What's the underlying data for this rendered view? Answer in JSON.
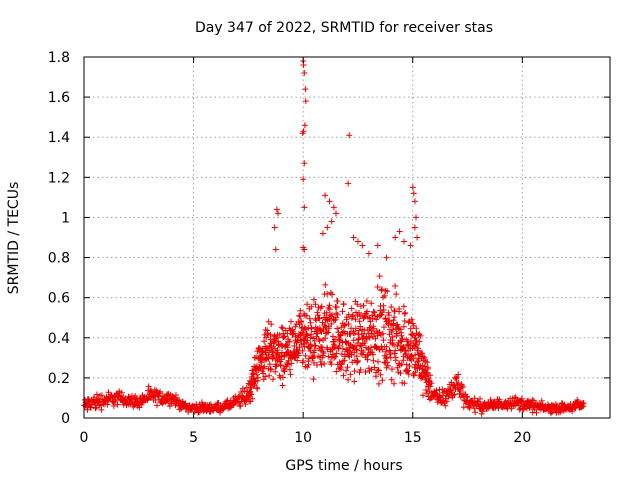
{
  "chart_data": {
    "type": "scatter",
    "title": "Day 347 of 2022, SRMTID for receiver stas",
    "xlabel": "GPS time / hours",
    "ylabel": "SRMTID / TECUs",
    "xlim": [
      0,
      24
    ],
    "ylim": [
      0,
      1.8
    ],
    "xticks": [
      0,
      5,
      10,
      15,
      20
    ],
    "yticks": [
      0,
      0.2,
      0.4,
      0.6,
      0.8,
      1,
      1.2,
      1.4,
      1.6,
      1.8
    ],
    "xtick_labels": [
      "0",
      "5",
      "10",
      "15",
      "20"
    ],
    "ytick_labels": [
      "0",
      "0.2",
      "0.4",
      "0.6",
      "0.8",
      "1",
      "1.2",
      "1.4",
      "1.6",
      "1.8"
    ],
    "grid": true,
    "marker": "+",
    "marker_color": "#ee0000",
    "envelope": {
      "x": [
        0,
        0.5,
        1,
        1.5,
        2,
        2.5,
        3,
        3.5,
        4,
        4.5,
        5,
        5.5,
        6,
        6.5,
        7,
        7.5,
        8,
        8.5,
        9,
        9.5,
        10,
        10.5,
        11,
        11.5,
        12,
        12.5,
        13,
        13.5,
        14,
        14.5,
        15,
        15.5,
        16,
        16.5,
        17,
        17.5,
        18,
        18.5,
        19,
        19.5,
        20,
        20.5,
        21,
        21.5,
        22,
        22.5,
        22.8
      ],
      "y": [
        0.06,
        0.08,
        0.09,
        0.1,
        0.09,
        0.08,
        0.11,
        0.1,
        0.1,
        0.06,
        0.05,
        0.05,
        0.05,
        0.06,
        0.08,
        0.12,
        0.28,
        0.35,
        0.32,
        0.34,
        0.38,
        0.36,
        0.45,
        0.42,
        0.36,
        0.4,
        0.42,
        0.44,
        0.4,
        0.38,
        0.35,
        0.25,
        0.1,
        0.1,
        0.18,
        0.08,
        0.06,
        0.06,
        0.07,
        0.08,
        0.07,
        0.06,
        0.05,
        0.05,
        0.05,
        0.06,
        0.06
      ],
      "spread": [
        0.05,
        0.06,
        0.05,
        0.05,
        0.04,
        0.04,
        0.05,
        0.05,
        0.04,
        0.03,
        0.03,
        0.03,
        0.03,
        0.03,
        0.05,
        0.08,
        0.15,
        0.2,
        0.18,
        0.18,
        0.22,
        0.25,
        0.28,
        0.26,
        0.25,
        0.26,
        0.28,
        0.3,
        0.3,
        0.28,
        0.25,
        0.18,
        0.06,
        0.06,
        0.1,
        0.05,
        0.04,
        0.04,
        0.04,
        0.04,
        0.04,
        0.04,
        0.03,
        0.03,
        0.03,
        0.04,
        0.04
      ]
    },
    "outliers": [
      [
        10.0,
        1.78
      ],
      [
        10.02,
        1.76
      ],
      [
        10.05,
        1.72
      ],
      [
        10.1,
        1.64
      ],
      [
        10.12,
        1.58
      ],
      [
        10.08,
        1.46
      ],
      [
        9.98,
        1.42
      ],
      [
        10.02,
        1.43
      ],
      [
        10.05,
        1.27
      ],
      [
        10.0,
        1.19
      ],
      [
        10.05,
        1.05
      ],
      [
        10.0,
        0.85
      ],
      [
        10.05,
        0.84
      ],
      [
        12.1,
        1.41
      ],
      [
        12.05,
        1.17
      ],
      [
        8.8,
        1.04
      ],
      [
        8.85,
        1.02
      ],
      [
        8.7,
        0.95
      ],
      [
        8.75,
        0.84
      ],
      [
        11.0,
        1.11
      ],
      [
        11.2,
        1.08
      ],
      [
        11.4,
        1.05
      ],
      [
        11.5,
        1.02
      ],
      [
        11.3,
        0.98
      ],
      [
        11.1,
        0.95
      ],
      [
        10.9,
        0.92
      ],
      [
        12.3,
        0.9
      ],
      [
        12.5,
        0.88
      ],
      [
        12.7,
        0.86
      ],
      [
        13.0,
        0.82
      ],
      [
        13.4,
        0.86
      ],
      [
        13.8,
        0.8
      ],
      [
        14.2,
        0.9
      ],
      [
        14.4,
        0.93
      ],
      [
        14.6,
        0.88
      ],
      [
        14.9,
        0.86
      ],
      [
        15.0,
        1.15
      ],
      [
        15.05,
        1.12
      ],
      [
        15.1,
        1.08
      ],
      [
        15.15,
        1.0
      ],
      [
        15.1,
        0.95
      ],
      [
        15.2,
        0.9
      ]
    ]
  }
}
